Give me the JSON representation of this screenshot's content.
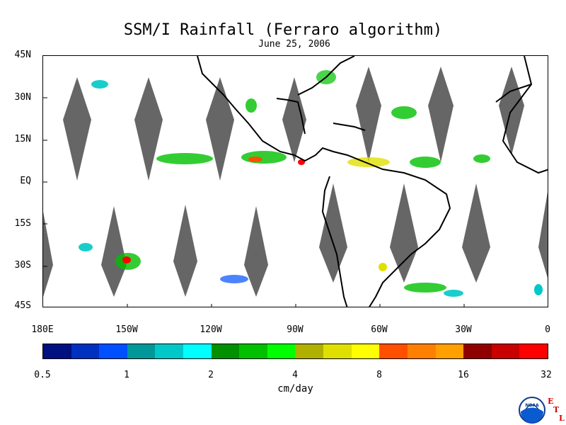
{
  "title": "SSM/I Rainfall (Ferraro algorithm)",
  "subtitle": "June 25, 2006",
  "lat_labels": [
    "45N",
    "30N",
    "15N",
    "EQ",
    "15S",
    "30S",
    "45S"
  ],
  "lon_labels": [
    "180E",
    "150W",
    "120W",
    "90W",
    "60W",
    "30W",
    "0"
  ],
  "colorbar": {
    "ticks": [
      "0.5",
      "1",
      "2",
      "4",
      "8",
      "16",
      "32"
    ],
    "units": "cm/day",
    "colors": [
      "#001080",
      "#0030c0",
      "#0050ff",
      "#009898",
      "#00c8c8",
      "#00ffff",
      "#009000",
      "#00c000",
      "#00ff00",
      "#b0b000",
      "#e0e000",
      "#ffff00",
      "#ff5000",
      "#ff8000",
      "#ffa000",
      "#900000",
      "#c80000",
      "#ff0000"
    ]
  },
  "map": {
    "region": "180E to 0, 45S to 45N",
    "swath_gap_color": "#666666",
    "coastline_color": "#000000"
  },
  "logo": {
    "badge": "NOAA",
    "lab_letters": [
      "E",
      "T",
      "L"
    ]
  }
}
